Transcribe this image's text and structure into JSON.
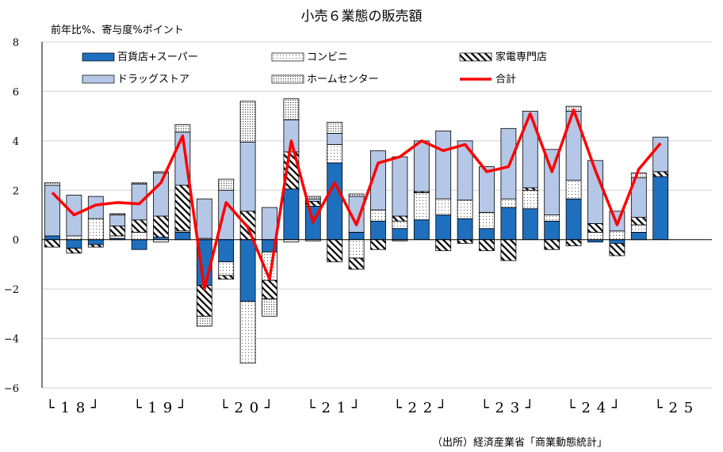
{
  "chart_data": {
    "type": "bar",
    "stacked": true,
    "title": "小売６業態の販売額",
    "ylabel": "前年比%、寄与度%ポイント",
    "ylim": [
      -6,
      8
    ],
    "yticks": [
      "8",
      "6",
      "4",
      "2",
      "0",
      "−2",
      "−4",
      "−6"
    ],
    "grid": true,
    "year_labels": [
      "└ 1 8 ┘",
      "└ 1 9 ┘",
      "└ 2 0 ┘",
      "└ 2 1 ┘",
      "└ 2 2 ┘",
      "└ 2 3 ┘",
      "└ 2 4 ┘",
      "└ 2 5"
    ],
    "periods": [
      "18Q1",
      "18Q2",
      "18Q3",
      "18Q4",
      "19Q1",
      "19Q2",
      "19Q3",
      "19Q4",
      "20Q1",
      "20Q2",
      "20Q3",
      "20Q4",
      "21Q1",
      "21Q2",
      "21Q3",
      "21Q4",
      "22Q1",
      "22Q2",
      "22Q3",
      "22Q4",
      "23Q1",
      "23Q2",
      "23Q3",
      "23Q4",
      "24Q1",
      "24Q2",
      "24Q3",
      "24Q4",
      "25Q1"
    ],
    "series": [
      {
        "name": "百貨店+スーパー",
        "color": "#1f6fbf",
        "values": [
          0.15,
          -0.35,
          -0.2,
          0.05,
          -0.4,
          0.1,
          0.3,
          -1.85,
          -0.9,
          -2.5,
          -0.5,
          2.05,
          1.35,
          3.1,
          0.3,
          0.75,
          0.45,
          0.8,
          1.0,
          0.85,
          0.45,
          1.3,
          1.25,
          0.75,
          1.65,
          -0.1,
          -0.15,
          0.3,
          2.55
        ]
      },
      {
        "name": "コンビニ",
        "color": "#ffffff",
        "values": [
          0.0,
          0.15,
          0.85,
          0.1,
          0.3,
          -0.1,
          0.05,
          0.05,
          -0.55,
          -2.5,
          -1.15,
          -0.1,
          -0.05,
          0.75,
          -0.75,
          0.45,
          0.3,
          1.1,
          0.65,
          0.75,
          0.65,
          0.35,
          0.75,
          0.25,
          0.75,
          0.3,
          0.35,
          0.3,
          0.0
        ]
      },
      {
        "name": "家電専門店",
        "color": "#ffffff",
        "values": [
          -0.3,
          -0.2,
          -0.1,
          0.4,
          0.5,
          0.85,
          1.85,
          -1.25,
          -0.15,
          1.15,
          -0.75,
          1.5,
          0.2,
          -0.9,
          -0.45,
          -0.4,
          0.2,
          0.05,
          -0.45,
          -0.15,
          -0.45,
          -0.85,
          0.1,
          -0.4,
          -0.25,
          0.35,
          -0.5,
          0.3,
          0.2
        ]
      },
      {
        "name": "ドラッグストア",
        "color": "#b4c7e7",
        "values": [
          2.05,
          1.65,
          0.9,
          0.45,
          1.45,
          1.75,
          2.15,
          1.6,
          2.0,
          2.8,
          1.3,
          1.3,
          0.1,
          0.45,
          1.45,
          2.4,
          2.4,
          2.05,
          2.75,
          2.4,
          1.85,
          2.85,
          3.1,
          2.65,
          2.8,
          2.55,
          0.8,
          1.6,
          1.4
        ]
      },
      {
        "name": "ホームセンター",
        "color": "#ffffff",
        "values": [
          0.1,
          0.0,
          0.0,
          0.05,
          0.05,
          0.05,
          0.3,
          -0.4,
          0.45,
          1.65,
          -0.7,
          0.85,
          0.1,
          0.45,
          0.1,
          0.0,
          -0.05,
          0.0,
          0.0,
          0.0,
          0.0,
          0.0,
          0.0,
          0.0,
          0.2,
          0.0,
          0.0,
          0.2,
          0.0
        ]
      }
    ],
    "line": {
      "name": "合計",
      "color": "#ff0000",
      "values": [
        1.9,
        1.0,
        1.4,
        1.5,
        1.45,
        2.3,
        4.2,
        -2.0,
        1.5,
        0.5,
        -1.6,
        4.0,
        0.7,
        2.3,
        0.6,
        3.1,
        3.35,
        4.0,
        3.6,
        3.85,
        2.75,
        2.95,
        5.1,
        2.75,
        5.25,
        2.8,
        0.6,
        2.85,
        3.9
      ]
    }
  },
  "legend_labels": {
    "l1": "百貨店+スーパー",
    "l2": "コンビニ",
    "l3": "家電専門店",
    "l4": "ドラッグストア",
    "l5": "ホームセンター",
    "l6": "合計"
  },
  "source": "（出所）経済産業省「商業動態統計」"
}
